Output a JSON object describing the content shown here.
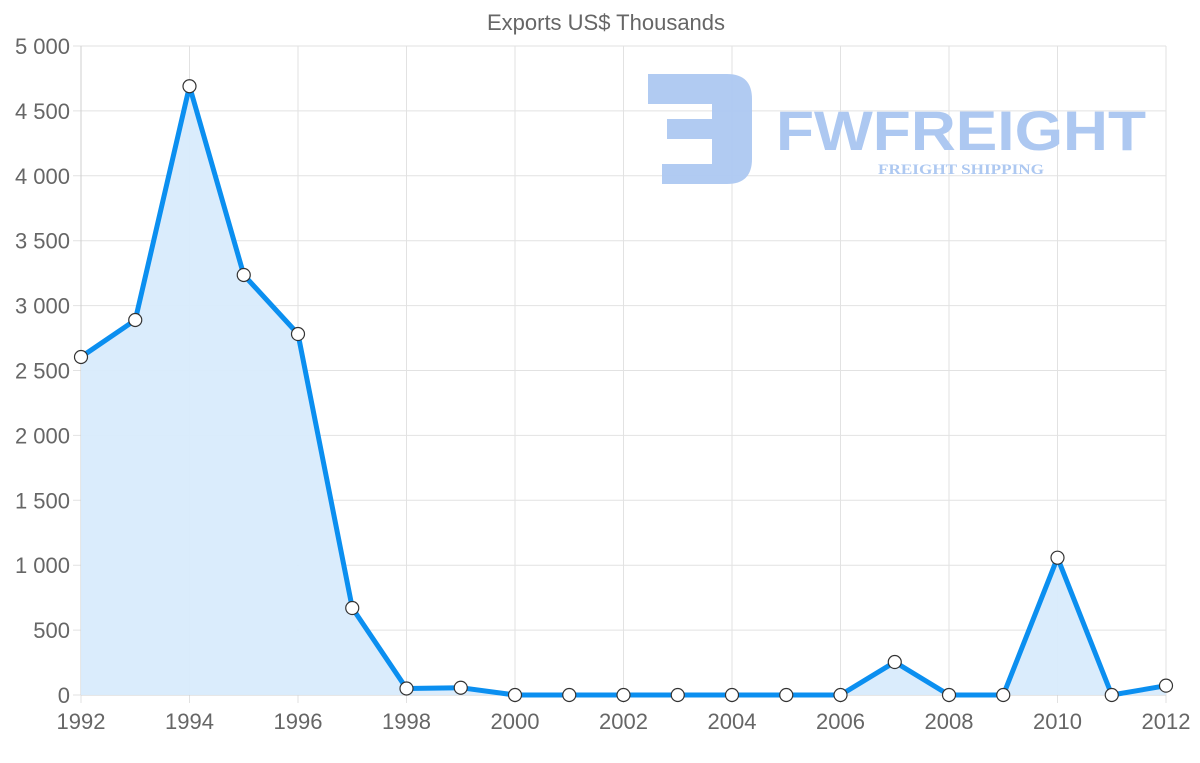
{
  "chart_data": {
    "type": "line",
    "title": "Exports US$ Thousands",
    "xlabel": "",
    "ylabel": "",
    "filled_area": true,
    "grid": true,
    "legend": null,
    "ylim": [
      0,
      5000
    ],
    "y_ticks": [
      0,
      500,
      1000,
      1500,
      2000,
      2500,
      3000,
      3500,
      4000,
      4500,
      5000
    ],
    "y_tick_labels": [
      "0",
      "500",
      "1 000",
      "1 500",
      "2 000",
      "2 500",
      "3 000",
      "3 500",
      "4 000",
      "4 500",
      "5 000"
    ],
    "x_tick_labels": [
      "1992",
      "1994",
      "1996",
      "1998",
      "2000",
      "2002",
      "2004",
      "2006",
      "2008",
      "2010",
      "2012"
    ],
    "x": [
      1992,
      1993,
      1994,
      1995,
      1996,
      1997,
      1998,
      1999,
      2000,
      2001,
      2002,
      2003,
      2004,
      2005,
      2006,
      2007,
      2008,
      2009,
      2010,
      2011,
      2012
    ],
    "series": [
      {
        "name": "Exports US$ Thousands",
        "values": [
          2604,
          2889,
          4690,
          3236,
          2781,
          670,
          50,
          56,
          0,
          0,
          0,
          0,
          0,
          0,
          0,
          254,
          0,
          0,
          1058,
          0,
          72
        ]
      }
    ],
    "colors": {
      "line": "#0b8ff0",
      "fill": "#d8ebfc",
      "point_fill": "#ffffff",
      "point_stroke": "#333333",
      "grid": "#e2e2e2",
      "text": "#666666"
    }
  },
  "watermark": {
    "brand": "FWFREIGHT",
    "tagline": "FREIGHT SHIPPING",
    "color": "#adc8f1"
  }
}
